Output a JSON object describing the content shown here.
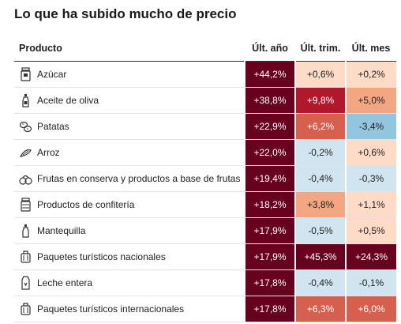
{
  "title": "Lo que ha subido mucho de precio",
  "chart_data": {
    "type": "table",
    "columns": [
      "Producto",
      "Últ. año",
      "Últ. trim.",
      "Últ. mes"
    ],
    "rows": [
      {
        "product": "Azúcar",
        "icon": "sugar-jar-icon",
        "values": [
          "+44,2%",
          "+0,6%",
          "+0,2%"
        ],
        "numbers": [
          44.2,
          0.6,
          0.2
        ]
      },
      {
        "product": "Aceite de oliva",
        "icon": "oil-bottle-icon",
        "values": [
          "+38,8%",
          "+9,8%",
          "+5,0%"
        ],
        "numbers": [
          38.8,
          9.8,
          5.0
        ]
      },
      {
        "product": "Patatas",
        "icon": "potatoes-icon",
        "values": [
          "+22,9%",
          "+6,2%",
          "-3,4%"
        ],
        "numbers": [
          22.9,
          6.2,
          -3.4
        ]
      },
      {
        "product": "Arroz",
        "icon": "rice-icon",
        "values": [
          "+22,0%",
          "-0,2%",
          "+0,6%"
        ],
        "numbers": [
          22.0,
          -0.2,
          0.6
        ]
      },
      {
        "product": "Frutas en conserva y productos a base de frutas",
        "icon": "fruit-icon",
        "values": [
          "+19,4%",
          "-0,4%",
          "-0,3%"
        ],
        "numbers": [
          19.4,
          -0.4,
          -0.3
        ]
      },
      {
        "product": "Productos de confitería",
        "icon": "candy-jar-icon",
        "values": [
          "+18,2%",
          "+3,8%",
          "+1,1%"
        ],
        "numbers": [
          18.2,
          3.8,
          1.1
        ]
      },
      {
        "product": "Mantequilla",
        "icon": "butter-bottle-icon",
        "values": [
          "+17,9%",
          "-0,5%",
          "+0,5%"
        ],
        "numbers": [
          17.9,
          -0.5,
          0.5
        ]
      },
      {
        "product": "Paquetes turísticos nacionales",
        "icon": "suitcase-icon",
        "values": [
          "+17,9%",
          "+45,3%",
          "+24,3%"
        ],
        "numbers": [
          17.9,
          45.3,
          24.3
        ]
      },
      {
        "product": "Leche entera",
        "icon": "milk-carton-icon",
        "values": [
          "+17,8%",
          "-0,4%",
          "-0,1%"
        ],
        "numbers": [
          17.8,
          -0.4,
          -0.1
        ]
      },
      {
        "product": "Paquetes turísticos internacionales",
        "icon": "suitcase-icon",
        "values": [
          "+17,8%",
          "+6,3%",
          "+6,0%"
        ],
        "numbers": [
          17.8,
          6.3,
          6.0
        ]
      }
    ],
    "colors": {
      "very_high": "#67001f",
      "high": "#b2182b",
      "medium_high": "#d6604d",
      "medium": "#f4a582",
      "low": "#fddbc7",
      "negative_small": "#d1e5f0",
      "negative_medium": "#92c5de"
    }
  }
}
